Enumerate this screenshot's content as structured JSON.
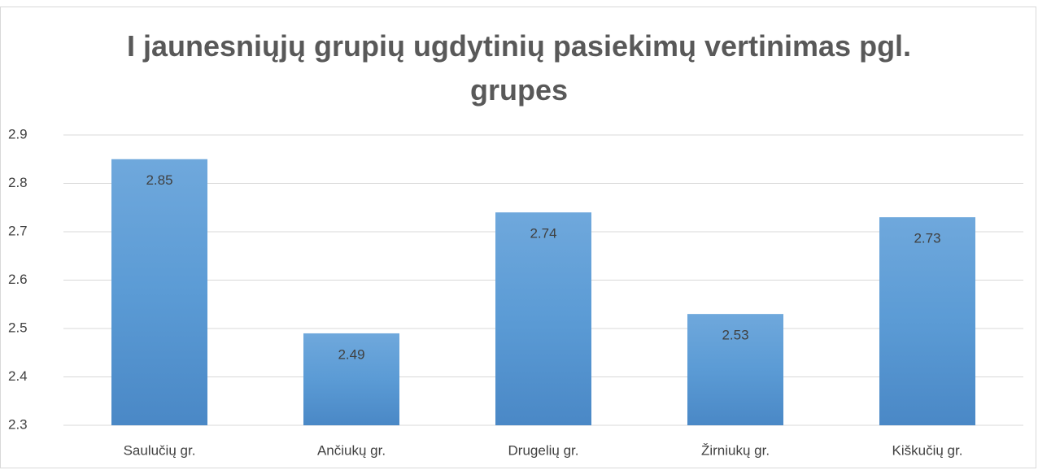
{
  "chart_data": {
    "type": "bar",
    "title": "I jaunesniųjų grupių ugdytinių pasiekimų vertinimas pgl. grupes",
    "categories": [
      "Saulučių gr.",
      "Ančiukų gr.",
      "Drugelių gr.",
      "Žirniukų gr.",
      "Kiškučių gr."
    ],
    "values": [
      2.85,
      2.49,
      2.74,
      2.53,
      2.73
    ],
    "color": "#5b9bd5",
    "ylim": [
      2.3,
      2.9
    ],
    "yticks": [
      2.3,
      2.4,
      2.5,
      2.6,
      2.7,
      2.8,
      2.9
    ],
    "grid": true
  }
}
